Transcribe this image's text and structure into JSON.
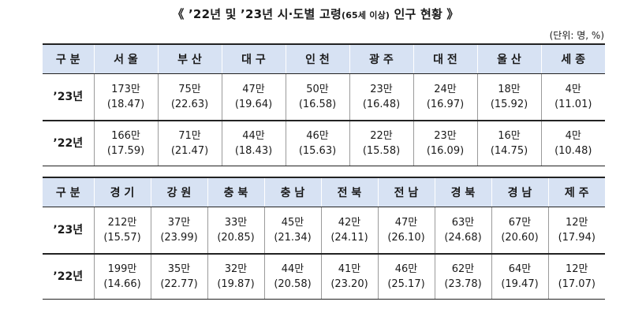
{
  "title": {
    "prefix": "《 ’22년 및 ’23년 시·도별 고령",
    "note": "(65세 이상)",
    "suffix": " 인구 현황 》"
  },
  "unit": "(단위: 명, %)",
  "tables": [
    {
      "header": [
        "구 분",
        "서 울",
        "부 산",
        "대 구",
        "인 천",
        "광 주",
        "대 전",
        "울 산",
        "세 종"
      ],
      "rows": [
        {
          "label": "’23년",
          "cells": [
            {
              "count": "173만",
              "pct": "(18.47)"
            },
            {
              "count": "75만",
              "pct": "(22.63)"
            },
            {
              "count": "47만",
              "pct": "(19.64)"
            },
            {
              "count": "50만",
              "pct": "(16.58)"
            },
            {
              "count": "23만",
              "pct": "(16.48)"
            },
            {
              "count": "24만",
              "pct": "(16.97)"
            },
            {
              "count": "18만",
              "pct": "(15.92)"
            },
            {
              "count": "4만",
              "pct": "(11.01)"
            }
          ]
        },
        {
          "label": "’22년",
          "cells": [
            {
              "count": "166만",
              "pct": "(17.59)"
            },
            {
              "count": "71만",
              "pct": "(21.47)"
            },
            {
              "count": "44만",
              "pct": "(18.43)"
            },
            {
              "count": "46만",
              "pct": "(15.63)"
            },
            {
              "count": "22만",
              "pct": "(15.58)"
            },
            {
              "count": "23만",
              "pct": "(16.09)"
            },
            {
              "count": "16만",
              "pct": "(14.75)"
            },
            {
              "count": "4만",
              "pct": "(10.48)"
            }
          ]
        }
      ]
    },
    {
      "header": [
        "구 분",
        "경 기",
        "강 원",
        "충 북",
        "충 남",
        "전 북",
        "전 남",
        "경 북",
        "경 남",
        "제 주"
      ],
      "rows": [
        {
          "label": "’23년",
          "cells": [
            {
              "count": "212만",
              "pct": "(15.57)"
            },
            {
              "count": "37만",
              "pct": "(23.99)"
            },
            {
              "count": "33만",
              "pct": "(20.85)"
            },
            {
              "count": "45만",
              "pct": "(21.34)"
            },
            {
              "count": "42만",
              "pct": "(24.11)"
            },
            {
              "count": "47만",
              "pct": "(26.10)"
            },
            {
              "count": "63만",
              "pct": "(24.68)"
            },
            {
              "count": "67만",
              "pct": "(20.60)"
            },
            {
              "count": "12만",
              "pct": "(17.94)"
            }
          ]
        },
        {
          "label": "’22년",
          "cells": [
            {
              "count": "199만",
              "pct": "(14.66)"
            },
            {
              "count": "35만",
              "pct": "(22.77)"
            },
            {
              "count": "32만",
              "pct": "(19.87)"
            },
            {
              "count": "44만",
              "pct": "(20.58)"
            },
            {
              "count": "41만",
              "pct": "(23.20)"
            },
            {
              "count": "46만",
              "pct": "(25.17)"
            },
            {
              "count": "62만",
              "pct": "(23.78)"
            },
            {
              "count": "64만",
              "pct": "(19.47)"
            },
            {
              "count": "12만",
              "pct": "(17.07)"
            }
          ]
        }
      ]
    }
  ],
  "colors": {
    "header_bg": "#d7e2f3",
    "rule": "#222222",
    "text": "#1a1a1a"
  }
}
